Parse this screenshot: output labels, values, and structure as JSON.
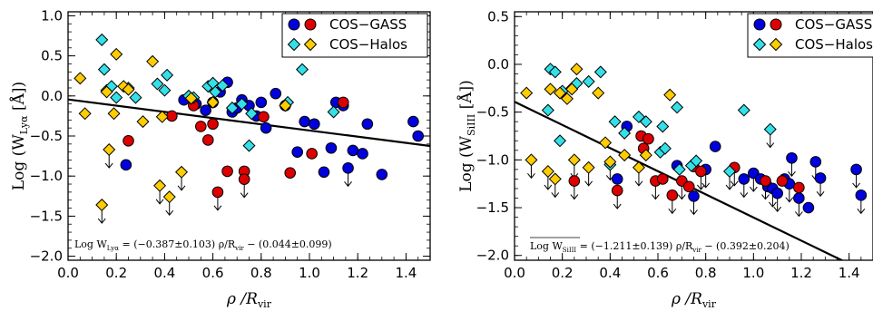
{
  "chart_data": [
    {
      "type": "scatter",
      "panel": "left",
      "xlabel": "ρ /R",
      "xlabel_sub": "vir",
      "ylabel": "Log (W",
      "ylabel_sub": "Lyα",
      "ylabel_tail": " [Å])",
      "xlim": [
        0.0,
        1.5
      ],
      "ylim": [
        -2.05,
        1.05
      ],
      "xticks": [
        "0.0",
        "0.2",
        "0.4",
        "0.6",
        "0.8",
        "1.0",
        "1.2",
        "1.4"
      ],
      "xtick_values": [
        0.0,
        0.2,
        0.4,
        0.6,
        0.8,
        1.0,
        1.2,
        1.4
      ],
      "yticks": [
        "1.0",
        "0.5",
        "0.0",
        "−0.5",
        "−1.0",
        "−1.5",
        "−2.0"
      ],
      "ytick_values": [
        1.0,
        0.5,
        0.0,
        -0.5,
        -1.0,
        -1.5,
        -2.0
      ],
      "legend": {
        "position": "top-right",
        "entries": [
          {
            "label": "COS−GASS",
            "markers": [
              "circle-blue",
              "circle-red"
            ]
          },
          {
            "label": "COS−Halos",
            "markers": [
              "diamond-cyan",
              "diamond-gold"
            ]
          }
        ]
      },
      "fit": {
        "slope": -0.387,
        "intercept": -0.044,
        "label_pre": "Log W",
        "label_sub": "Lyα",
        "label_post": " = (−0.387±0.103)  ρ/R",
        "label_sub2": "vir",
        "label_end": " − (0.044±0.099)"
      },
      "series": [
        {
          "name": "COS−GASS",
          "marker": "circle",
          "color": "#0000dd",
          "points": [
            [
              0.24,
              -0.86
            ],
            [
              0.48,
              -0.05
            ],
            [
              0.53,
              -0.1
            ],
            [
              0.57,
              -0.18
            ],
            [
              0.6,
              -0.08
            ],
            [
              0.63,
              0.05
            ],
            [
              0.66,
              0.17
            ],
            [
              0.68,
              -0.2
            ],
            [
              0.7,
              -0.15
            ],
            [
              0.72,
              -0.05
            ],
            [
              0.75,
              -0.12
            ],
            [
              0.78,
              -0.25
            ],
            [
              0.8,
              -0.08
            ],
            [
              0.82,
              -0.4
            ],
            [
              0.86,
              0.03
            ],
            [
              0.9,
              -0.12
            ],
            [
              0.95,
              -0.7
            ],
            [
              0.98,
              -0.32
            ],
            [
              1.02,
              -0.35
            ],
            [
              1.06,
              -0.95
            ],
            [
              1.09,
              -0.65
            ],
            [
              1.11,
              -0.08
            ],
            [
              1.14,
              -0.12
            ],
            [
              1.16,
              -0.9
            ],
            [
              1.18,
              -0.68
            ],
            [
              1.22,
              -0.72
            ],
            [
              1.24,
              -0.35
            ],
            [
              1.3,
              -0.98
            ],
            [
              1.43,
              -0.32
            ],
            [
              1.45,
              -0.5
            ]
          ]
        },
        {
          "name": "COS−GASS",
          "marker": "circle",
          "color": "#dd0000",
          "points": [
            [
              0.25,
              -0.56
            ],
            [
              0.43,
              -0.25
            ],
            [
              0.52,
              -0.12
            ],
            [
              0.55,
              -0.38
            ],
            [
              0.58,
              -0.55
            ],
            [
              0.6,
              -0.35
            ],
            [
              0.62,
              -1.2
            ],
            [
              0.66,
              -0.94
            ],
            [
              0.73,
              -0.94
            ],
            [
              0.73,
              -1.04
            ],
            [
              0.81,
              -0.26
            ],
            [
              0.92,
              -0.96
            ],
            [
              1.01,
              -0.72
            ],
            [
              1.14,
              -0.08
            ]
          ]
        },
        {
          "name": "COS−Halos",
          "marker": "diamond",
          "color": "#33e0e8",
          "points": [
            [
              0.14,
              0.7
            ],
            [
              0.15,
              0.33
            ],
            [
              0.16,
              0.07
            ],
            [
              0.18,
              0.12
            ],
            [
              0.2,
              -0.02
            ],
            [
              0.25,
              0.1
            ],
            [
              0.28,
              -0.02
            ],
            [
              0.37,
              0.15
            ],
            [
              0.4,
              0.07
            ],
            [
              0.41,
              0.26
            ],
            [
              0.5,
              0.0
            ],
            [
              0.52,
              -0.02
            ],
            [
              0.58,
              0.12
            ],
            [
              0.6,
              0.16
            ],
            [
              0.61,
              0.05
            ],
            [
              0.64,
              0.13
            ],
            [
              0.68,
              -0.15
            ],
            [
              0.72,
              -0.1
            ],
            [
              0.75,
              -0.62
            ],
            [
              0.76,
              -0.22
            ],
            [
              0.91,
              -0.08
            ],
            [
              0.97,
              0.33
            ],
            [
              1.1,
              -0.2
            ]
          ]
        },
        {
          "name": "COS−Halos",
          "marker": "diamond",
          "color": "#ffcc00",
          "points": [
            [
              0.05,
              0.22
            ],
            [
              0.07,
              -0.22
            ],
            [
              0.14,
              -1.36
            ],
            [
              0.16,
              0.05
            ],
            [
              0.17,
              -0.67
            ],
            [
              0.19,
              -0.22
            ],
            [
              0.2,
              0.52
            ],
            [
              0.23,
              0.12
            ],
            [
              0.25,
              0.08
            ],
            [
              0.31,
              -0.32
            ],
            [
              0.35,
              0.43
            ],
            [
              0.38,
              -1.12
            ],
            [
              0.39,
              -0.26
            ],
            [
              0.42,
              -1.26
            ],
            [
              0.47,
              -0.95
            ],
            [
              0.51,
              -0.03
            ],
            [
              0.6,
              -0.08
            ],
            [
              0.9,
              -0.12
            ]
          ]
        }
      ],
      "upper_limits": [
        [
          0.14,
          -1.36
        ],
        [
          0.17,
          -0.67
        ],
        [
          0.38,
          -1.12
        ],
        [
          0.42,
          -1.26
        ],
        [
          0.47,
          -0.95
        ],
        [
          0.62,
          -1.2
        ],
        [
          0.73,
          -1.04
        ],
        [
          1.16,
          -0.9
        ]
      ]
    },
    {
      "type": "scatter",
      "panel": "right",
      "xlabel": "ρ /R",
      "xlabel_sub": "vir",
      "ylabel": "Log (W",
      "ylabel_sub": "SiIII",
      "ylabel_tail": " [Å])",
      "xlim": [
        0.0,
        1.5
      ],
      "ylim": [
        -2.05,
        0.55
      ],
      "xticks": [
        "0.0",
        "0.2",
        "0.4",
        "0.6",
        "0.8",
        "1.0",
        "1.2",
        "1.4"
      ],
      "xtick_values": [
        0.0,
        0.2,
        0.4,
        0.6,
        0.8,
        1.0,
        1.2,
        1.4
      ],
      "yticks": [
        "0.5",
        "0.0",
        "−0.5",
        "−1.0",
        "−1.5",
        "−2.0"
      ],
      "ytick_values": [
        0.5,
        0.0,
        -0.5,
        -1.0,
        -1.5,
        -2.0
      ],
      "legend": {
        "position": "top-right",
        "entries": [
          {
            "label": "COS−GASS",
            "markers": [
              "circle-blue",
              "circle-red"
            ]
          },
          {
            "label": "COS−Halos",
            "markers": [
              "diamond-cyan",
              "diamond-gold"
            ]
          }
        ]
      },
      "fit": {
        "slope": -1.211,
        "intercept": -0.392,
        "label_pre": "Log W",
        "label_sub": "SiIII",
        "label_post": " = (−1.211±0.139)  ρ/R",
        "label_sub2": "vir",
        "label_end": " − (0.392±0.204)"
      },
      "series": [
        {
          "name": "COS−GASS",
          "marker": "circle",
          "color": "#0000dd",
          "points": [
            [
              0.43,
              -1.2
            ],
            [
              0.47,
              -0.65
            ],
            [
              0.68,
              -1.06
            ],
            [
              0.75,
              -1.38
            ],
            [
              0.8,
              -1.1
            ],
            [
              0.84,
              -0.86
            ],
            [
              0.96,
              -1.2
            ],
            [
              1.0,
              -1.14
            ],
            [
              1.03,
              -1.2
            ],
            [
              1.06,
              -1.28
            ],
            [
              1.08,
              -1.3
            ],
            [
              1.1,
              -1.35
            ],
            [
              1.13,
              -1.2
            ],
            [
              1.15,
              -1.25
            ],
            [
              1.16,
              -0.98
            ],
            [
              1.19,
              -1.4
            ],
            [
              1.23,
              -1.5
            ],
            [
              1.26,
              -1.02
            ],
            [
              1.28,
              -1.19
            ],
            [
              1.43,
              -1.1
            ],
            [
              1.45,
              -1.37
            ]
          ]
        },
        {
          "name": "COS−GASS",
          "marker": "circle",
          "color": "#dd0000",
          "points": [
            [
              0.25,
              -1.22
            ],
            [
              0.43,
              -1.32
            ],
            [
              0.53,
              -0.75
            ],
            [
              0.54,
              -0.88
            ],
            [
              0.56,
              -0.78
            ],
            [
              0.59,
              -1.22
            ],
            [
              0.62,
              -1.2
            ],
            [
              0.66,
              -1.37
            ],
            [
              0.7,
              -1.22
            ],
            [
              0.73,
              -1.28
            ],
            [
              0.75,
              -1.07
            ],
            [
              0.78,
              -1.12
            ],
            [
              0.92,
              -1.08
            ],
            [
              1.05,
              -1.22
            ],
            [
              1.12,
              -1.22
            ],
            [
              1.19,
              -1.29
            ]
          ]
        },
        {
          "name": "COS−Halos",
          "marker": "diamond",
          "color": "#33e0e8",
          "points": [
            [
              0.14,
              -0.48
            ],
            [
              0.15,
              -0.05
            ],
            [
              0.17,
              -0.08
            ],
            [
              0.19,
              -0.8
            ],
            [
              0.2,
              -0.28
            ],
            [
              0.24,
              -0.25
            ],
            [
              0.26,
              -0.2
            ],
            [
              0.31,
              -0.18
            ],
            [
              0.36,
              -0.08
            ],
            [
              0.4,
              -1.05
            ],
            [
              0.42,
              -0.6
            ],
            [
              0.46,
              -0.72
            ],
            [
              0.52,
              -0.55
            ],
            [
              0.55,
              -0.6
            ],
            [
              0.61,
              -0.92
            ],
            [
              0.62,
              -0.65
            ],
            [
              0.63,
              -0.88
            ],
            [
              0.68,
              -0.45
            ],
            [
              0.69,
              -1.1
            ],
            [
              0.74,
              -1.06
            ],
            [
              0.76,
              -1.01
            ],
            [
              0.9,
              -1.12
            ],
            [
              0.96,
              -0.48
            ],
            [
              1.07,
              -0.68
            ]
          ]
        },
        {
          "name": "COS−Halos",
          "marker": "diamond",
          "color": "#ffcc00",
          "points": [
            [
              0.05,
              -0.3
            ],
            [
              0.07,
              -1.0
            ],
            [
              0.14,
              -1.12
            ],
            [
              0.15,
              -0.26
            ],
            [
              0.17,
              -1.2
            ],
            [
              0.19,
              -0.3
            ],
            [
              0.22,
              -0.36
            ],
            [
              0.24,
              -0.26
            ],
            [
              0.25,
              -1.0
            ],
            [
              0.26,
              -0.05
            ],
            [
              0.31,
              -1.08
            ],
            [
              0.35,
              -0.3
            ],
            [
              0.38,
              -0.82
            ],
            [
              0.4,
              -1.02
            ],
            [
              0.46,
              -0.95
            ],
            [
              0.52,
              -1.08
            ],
            [
              0.55,
              -0.95
            ],
            [
              0.65,
              -0.32
            ]
          ]
        }
      ],
      "upper_limits": [
        [
          0.07,
          -1.0
        ],
        [
          0.14,
          -1.12
        ],
        [
          0.17,
          -1.2
        ],
        [
          0.25,
          -1.0
        ],
        [
          0.25,
          -1.22
        ],
        [
          0.31,
          -1.08
        ],
        [
          0.4,
          -1.02
        ],
        [
          0.43,
          -1.32
        ],
        [
          0.52,
          -1.08
        ],
        [
          0.59,
          -1.22
        ],
        [
          0.66,
          -1.37
        ],
        [
          0.7,
          -1.22
        ],
        [
          0.75,
          -1.38
        ],
        [
          0.78,
          -1.12
        ],
        [
          0.8,
          -1.1
        ],
        [
          0.9,
          -1.12
        ],
        [
          0.92,
          -1.08
        ],
        [
          0.96,
          -1.2
        ],
        [
          1.0,
          -1.14
        ],
        [
          1.05,
          -1.22
        ],
        [
          1.07,
          -0.68
        ],
        [
          1.08,
          -1.3
        ],
        [
          1.1,
          -1.35
        ],
        [
          1.15,
          -1.25
        ],
        [
          1.16,
          -0.98
        ],
        [
          1.19,
          -1.4
        ],
        [
          1.26,
          -1.02
        ],
        [
          1.28,
          -1.19
        ],
        [
          1.43,
          -1.1
        ],
        [
          1.45,
          -1.37
        ]
      ]
    }
  ]
}
